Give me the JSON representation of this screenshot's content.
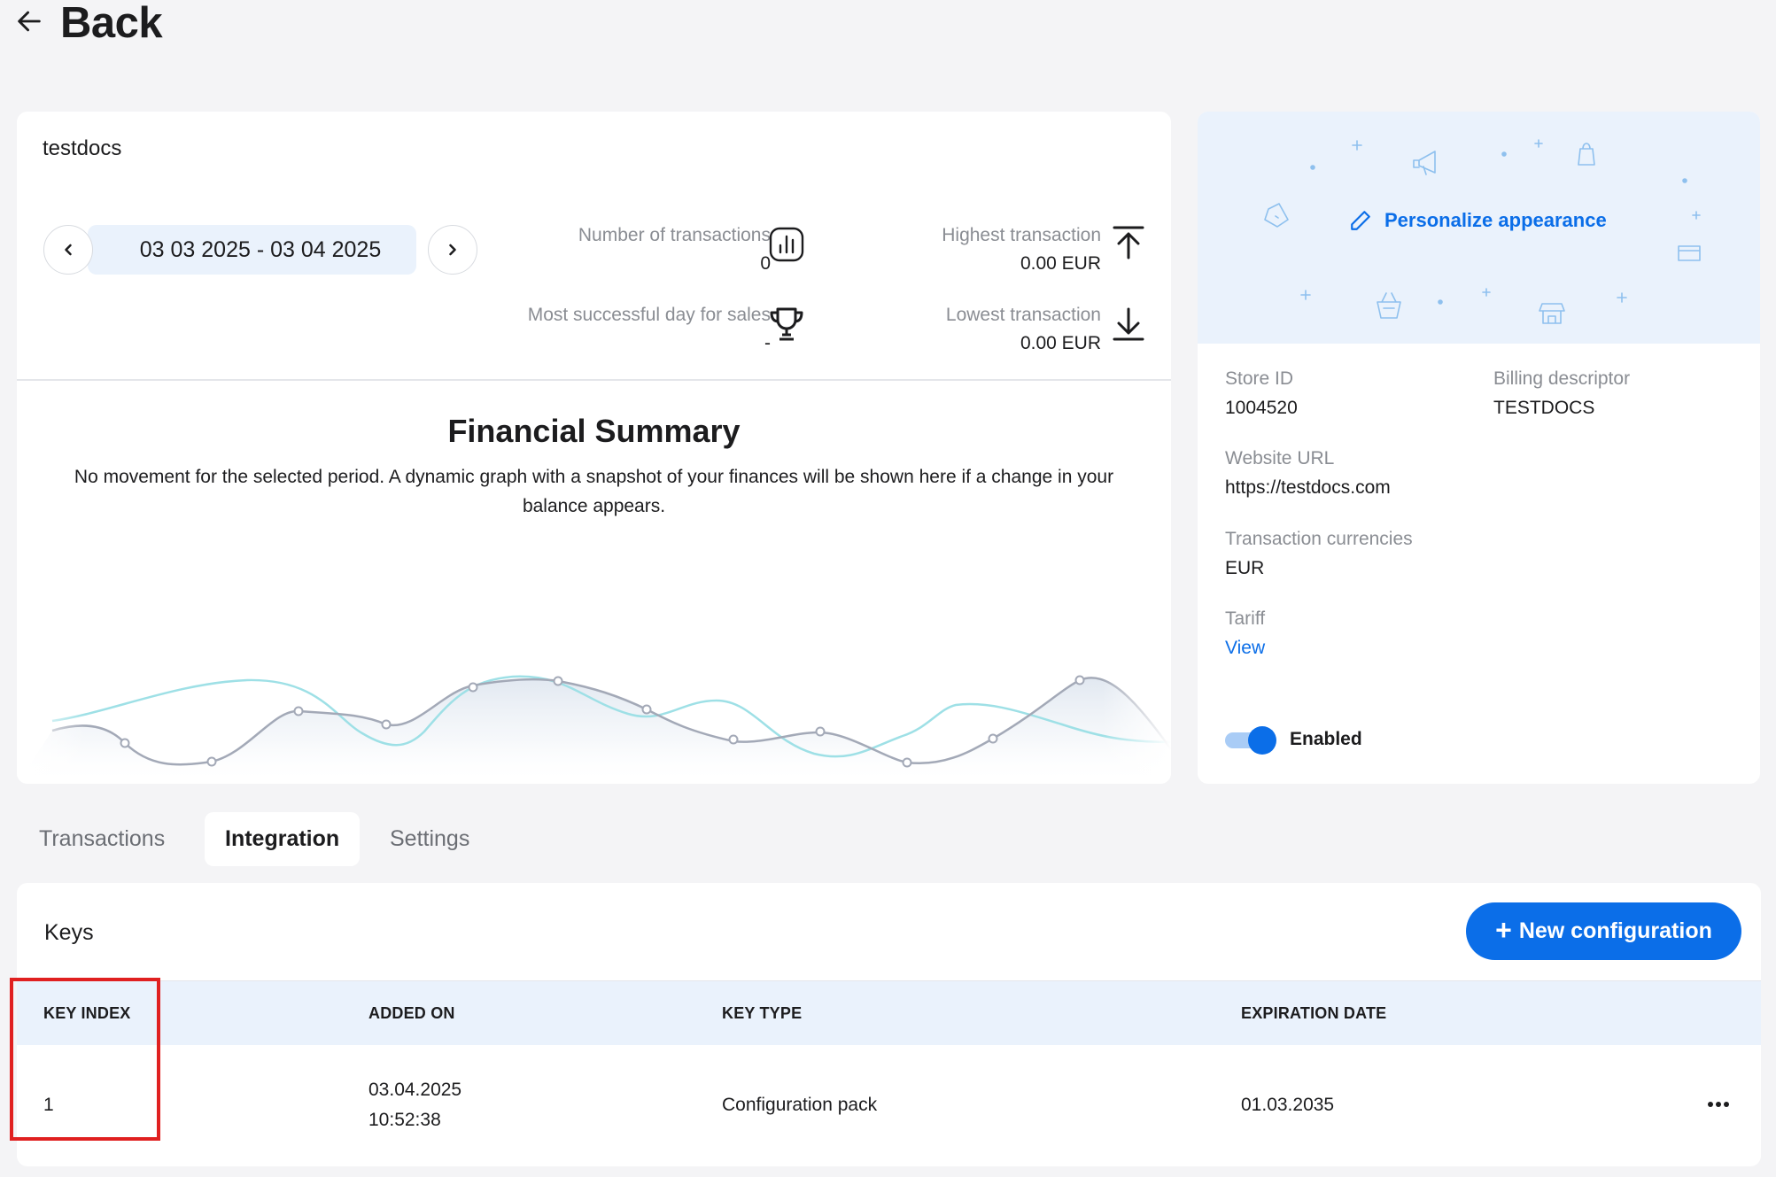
{
  "back": {
    "label": "Back",
    "icon": "arrow-left-icon"
  },
  "summary": {
    "store_name": "testdocs",
    "date_range": "03 03 2025 - 03 04 2025",
    "stats": {
      "transactions": {
        "label": "Number of transactions",
        "value": "0",
        "icon": "bar-chart-icon"
      },
      "highest": {
        "label": "Highest transaction",
        "value": "0.00 EUR",
        "icon": "arrow-up-to-line-icon"
      },
      "best_day": {
        "label": "Most successful day for sales",
        "value": "-",
        "icon": "trophy-icon"
      },
      "lowest": {
        "label": "Lowest transaction",
        "value": "0.00 EUR",
        "icon": "arrow-down-to-line-icon"
      }
    },
    "financial_title": "Financial Summary",
    "financial_desc": "No movement for the selected period. A dynamic graph with a snapshot of your finances will be shown here if a change in your balance appears."
  },
  "store": {
    "personalize_label": "Personalize appearance",
    "store_id_label": "Store ID",
    "store_id": "1004520",
    "billing_label": "Billing descriptor",
    "billing": "TESTDOCS",
    "website_label": "Website URL",
    "website": "https://testdocs.com",
    "currencies_label": "Transaction currencies",
    "currencies": "EUR",
    "tariff_label": "Tariff",
    "tariff_link": "View",
    "enabled_label": "Enabled",
    "enabled": true
  },
  "tabs": [
    {
      "label": "Transactions",
      "active": false
    },
    {
      "label": "Integration",
      "active": true
    },
    {
      "label": "Settings",
      "active": false
    }
  ],
  "keys": {
    "title": "Keys",
    "new_button": "New configuration",
    "columns": [
      "KEY INDEX",
      "ADDED ON",
      "KEY TYPE",
      "EXPIRATION DATE"
    ],
    "rows": [
      {
        "index": "1",
        "added_date": "03.04.2025",
        "added_time": "10:52:38",
        "type": "Configuration pack",
        "expiration": "01.03.2035"
      }
    ]
  },
  "colors": {
    "accent": "#0b6ee8",
    "highlight": "#e02020",
    "light_blue": "#eaf2fc"
  }
}
